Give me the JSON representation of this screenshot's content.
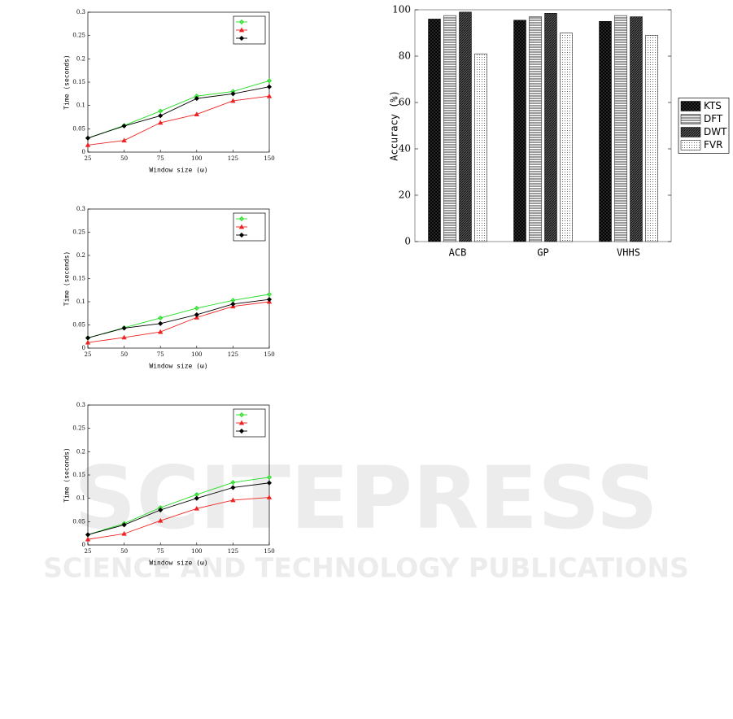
{
  "watermark": {
    "title": "SCITEPRESS",
    "subtitle": "SCIENCE AND TECHNOLOGY PUBLICATIONS"
  },
  "chart_data": [
    {
      "type": "line",
      "xlabel": "Window size (ω)",
      "ylabel": "Time (seconds)",
      "x": [
        25,
        50,
        75,
        100,
        125,
        150
      ],
      "xlim": [
        25,
        150
      ],
      "xticks": [
        25,
        50,
        75,
        100,
        125,
        150
      ],
      "ylim": [
        0,
        0.3
      ],
      "yticks": [
        0,
        0.05,
        0.1,
        0.15,
        0.2,
        0.25,
        0.3
      ],
      "legend": "upper right",
      "series": [
        {
          "color": "#22dd22",
          "marker": "plus",
          "values": [
            0.03,
            0.057,
            0.088,
            0.12,
            0.13,
            0.153
          ]
        },
        {
          "color": "#ee2222",
          "marker": "triangle",
          "values": [
            0.015,
            0.025,
            0.063,
            0.081,
            0.11,
            0.12
          ]
        },
        {
          "color": "#000000",
          "marker": "diamond",
          "values": [
            0.03,
            0.056,
            0.078,
            0.115,
            0.125,
            0.14
          ]
        }
      ]
    },
    {
      "type": "line",
      "xlabel": "Window size (ω)",
      "ylabel": "Time (seconds)",
      "x": [
        25,
        50,
        75,
        100,
        125,
        150
      ],
      "xlim": [
        25,
        150
      ],
      "xticks": [
        25,
        50,
        75,
        100,
        125,
        150
      ],
      "ylim": [
        0,
        0.3
      ],
      "yticks": [
        0,
        0.05,
        0.1,
        0.15,
        0.2,
        0.25,
        0.3
      ],
      "legend": "upper right",
      "series": [
        {
          "color": "#22dd22",
          "marker": "plus",
          "values": [
            0.022,
            0.044,
            0.065,
            0.086,
            0.103,
            0.116
          ]
        },
        {
          "color": "#ee2222",
          "marker": "triangle",
          "values": [
            0.012,
            0.023,
            0.035,
            0.066,
            0.09,
            0.1
          ]
        },
        {
          "color": "#000000",
          "marker": "diamond",
          "values": [
            0.022,
            0.043,
            0.053,
            0.072,
            0.095,
            0.105
          ]
        }
      ]
    },
    {
      "type": "line",
      "xlabel": "Window size (ω)",
      "ylabel": "Time (seconds)",
      "x": [
        25,
        50,
        75,
        100,
        125,
        150
      ],
      "xlim": [
        25,
        150
      ],
      "xticks": [
        25,
        50,
        75,
        100,
        125,
        150
      ],
      "ylim": [
        0,
        0.3
      ],
      "yticks": [
        0,
        0.05,
        0.1,
        0.15,
        0.2,
        0.25,
        0.3
      ],
      "legend": "upper right",
      "series": [
        {
          "color": "#22dd22",
          "marker": "plus",
          "values": [
            0.022,
            0.046,
            0.08,
            0.108,
            0.134,
            0.145
          ]
        },
        {
          "color": "#ee2222",
          "marker": "triangle",
          "values": [
            0.012,
            0.024,
            0.052,
            0.078,
            0.096,
            0.102
          ]
        },
        {
          "color": "#000000",
          "marker": "diamond",
          "values": [
            0.022,
            0.043,
            0.075,
            0.1,
            0.123,
            0.133
          ]
        }
      ]
    },
    {
      "type": "bar",
      "ylabel": "Accuracy (%)",
      "categories": [
        "ACB",
        "GP",
        "VHHS"
      ],
      "ylim": [
        0,
        100
      ],
      "yticks": [
        0,
        20,
        40,
        60,
        80,
        100
      ],
      "legend": "right",
      "series": [
        {
          "name": "KTS",
          "pattern": "crosshatch",
          "values": [
            96,
            95.5,
            95
          ]
        },
        {
          "name": "DFT",
          "pattern": "horizontal",
          "values": [
            97.5,
            97,
            97.5
          ]
        },
        {
          "name": "DWT",
          "pattern": "dense",
          "values": [
            99,
            98.5,
            97
          ]
        },
        {
          "name": "FVR",
          "pattern": "dotted",
          "values": [
            81,
            90,
            89
          ]
        }
      ]
    }
  ]
}
